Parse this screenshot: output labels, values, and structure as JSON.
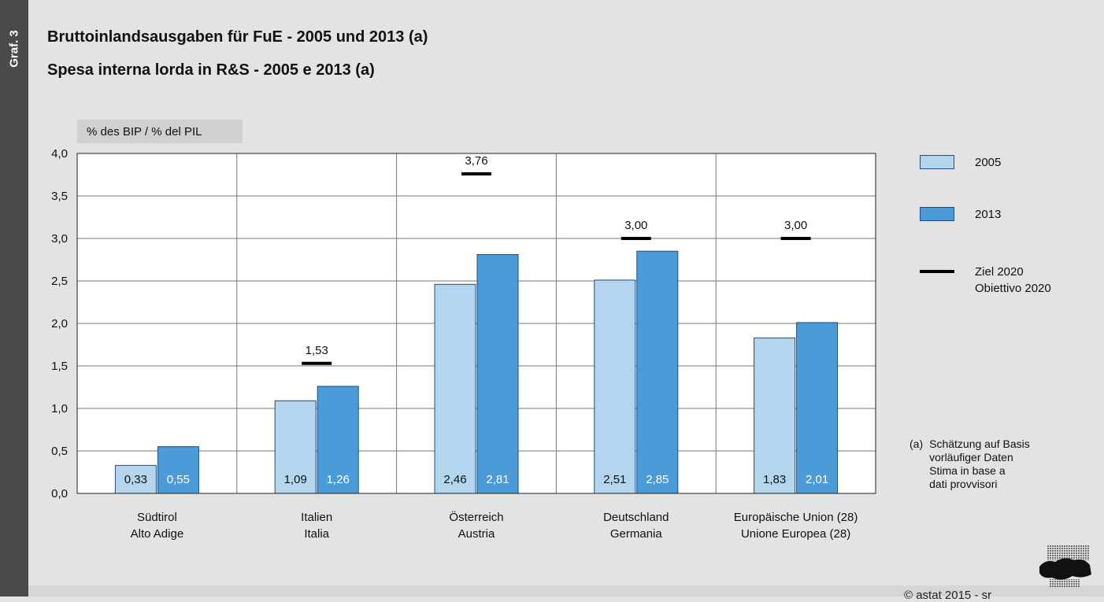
{
  "side_label": "Graf. 3",
  "title_de": "Bruttoinlandsausgaben für FuE - 2005 und 2013 (a)",
  "title_it": "Spesa interna lorda in R&S - 2005 e 2013 (a)",
  "unit_label": "% des BIP / % del PIL",
  "legend": {
    "s2005": "2005",
    "s2013": "2013",
    "target_line1": "Ziel 2020",
    "target_line2": "Obiettivo 2020"
  },
  "footnote": {
    "mark": "(a)",
    "lines": [
      "Schätzung auf Basis",
      "vorläufiger Daten",
      "Stima in base a",
      "dati provvisori"
    ]
  },
  "copyright": "© astat 2015 - sr",
  "logo_text": "astat",
  "colors": {
    "bar_2005": "#b3d5ee",
    "bar_2013": "#4a9bd8",
    "target": "#000000",
    "plot_bg": "#ffffff",
    "grid": "#777777"
  },
  "chart_data": {
    "type": "bar",
    "categories": [
      [
        "Südtirol",
        "Alto Adige"
      ],
      [
        "Italien",
        "Italia"
      ],
      [
        "Österreich",
        "Austria"
      ],
      [
        "Deutschland",
        "Germania"
      ],
      [
        "Europäische Union (28)",
        "Unione Europea (28)"
      ]
    ],
    "series": [
      {
        "name": "2005",
        "values": [
          0.33,
          1.09,
          2.46,
          2.51,
          1.83
        ],
        "labels": [
          "0,33",
          "1,09",
          "2,46",
          "2,51",
          "1,83"
        ]
      },
      {
        "name": "2013",
        "values": [
          0.55,
          1.26,
          2.81,
          2.85,
          2.01
        ],
        "labels": [
          "0,55",
          "1,26",
          "2,81",
          "2,85",
          "2,01"
        ]
      }
    ],
    "target": {
      "name": "Ziel 2020 / Obiettivo 2020",
      "values": [
        null,
        1.53,
        3.76,
        3.0,
        3.0
      ],
      "labels": [
        "",
        "1,53",
        "3,76",
        "3,00",
        "3,00"
      ]
    },
    "ylabel": "% des BIP / % del PIL",
    "ylim": [
      0,
      4
    ],
    "yticks": [
      "0,0",
      "0,5",
      "1,0",
      "1,5",
      "2,0",
      "2,5",
      "3,0",
      "3,5",
      "4,0"
    ],
    "grid": true,
    "legend_position": "right"
  }
}
